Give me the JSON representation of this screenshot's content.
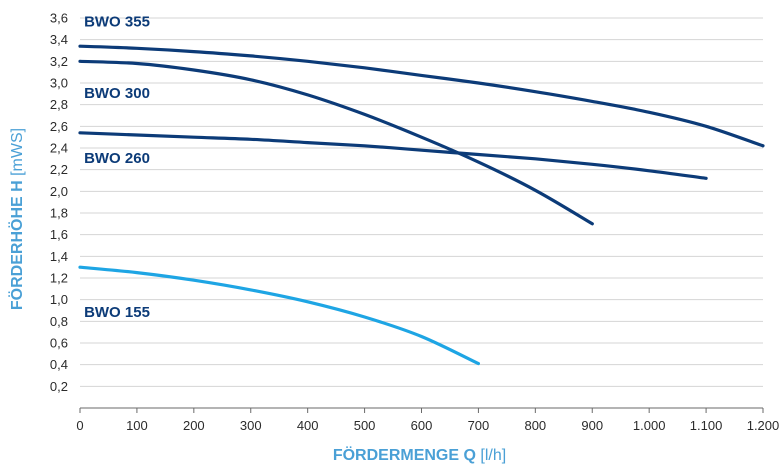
{
  "chart_data": {
    "type": "line",
    "xlabel_bold": "FÖRDERMENGE Q",
    "xlabel_unit": "[l/h]",
    "ylabel_bold": "FÖRDERHÖHE H",
    "ylabel_unit": "[mWS]",
    "xlim": [
      0,
      1200
    ],
    "ylim": [
      0,
      3.6
    ],
    "x_ticks": [
      0,
      100,
      200,
      300,
      400,
      500,
      600,
      700,
      800,
      900,
      1000,
      1100,
      1200
    ],
    "x_tick_labels": [
      "0",
      "100",
      "200",
      "300",
      "400",
      "500",
      "600",
      "700",
      "800",
      "900",
      "1.000",
      "1.100",
      "1.200"
    ],
    "y_ticks": [
      0.2,
      0.4,
      0.6,
      0.8,
      1.0,
      1.2,
      1.4,
      1.6,
      1.8,
      2.0,
      2.2,
      2.4,
      2.6,
      2.8,
      3.0,
      3.2,
      3.4,
      3.6
    ],
    "y_tick_labels": [
      "0,2",
      "0,4",
      "0,6",
      "0,8",
      "1,0",
      "1,2",
      "1,4",
      "1,6",
      "1,8",
      "2,0",
      "2,2",
      "2,4",
      "2,6",
      "2,8",
      "3,0",
      "3,2",
      "3,4",
      "3,6"
    ],
    "grid": "horizontal",
    "series": [
      {
        "name": "BWO 355",
        "color": "#0c3b78",
        "label_anchor": {
          "x": 30,
          "y": 3.52
        },
        "points": [
          [
            0,
            3.34
          ],
          [
            100,
            3.32
          ],
          [
            200,
            3.29
          ],
          [
            300,
            3.25
          ],
          [
            400,
            3.2
          ],
          [
            500,
            3.14
          ],
          [
            600,
            3.07
          ],
          [
            700,
            3.0
          ],
          [
            800,
            2.92
          ],
          [
            900,
            2.83
          ],
          [
            1000,
            2.73
          ],
          [
            1100,
            2.6
          ],
          [
            1200,
            2.42
          ]
        ]
      },
      {
        "name": "BWO 300",
        "color": "#0c3b78",
        "label_anchor": {
          "x": 30,
          "y": 2.86
        },
        "points": [
          [
            0,
            3.2
          ],
          [
            100,
            3.18
          ],
          [
            200,
            3.12
          ],
          [
            300,
            3.03
          ],
          [
            400,
            2.89
          ],
          [
            500,
            2.71
          ],
          [
            600,
            2.5
          ],
          [
            700,
            2.27
          ],
          [
            800,
            2.01
          ],
          [
            900,
            1.7
          ]
        ]
      },
      {
        "name": "BWO 260",
        "color": "#0c3b78",
        "label_anchor": {
          "x": 30,
          "y": 2.26
        },
        "points": [
          [
            0,
            2.54
          ],
          [
            100,
            2.52
          ],
          [
            200,
            2.5
          ],
          [
            300,
            2.48
          ],
          [
            400,
            2.45
          ],
          [
            500,
            2.42
          ],
          [
            600,
            2.38
          ],
          [
            700,
            2.34
          ],
          [
            800,
            2.3
          ],
          [
            900,
            2.25
          ],
          [
            1000,
            2.19
          ],
          [
            1100,
            2.12
          ]
        ]
      },
      {
        "name": "BWO 155",
        "color": "#1ea5e4",
        "label_anchor": {
          "x": 30,
          "y": 0.84
        },
        "points": [
          [
            0,
            1.3
          ],
          [
            100,
            1.25
          ],
          [
            200,
            1.18
          ],
          [
            300,
            1.09
          ],
          [
            400,
            0.98
          ],
          [
            500,
            0.84
          ],
          [
            600,
            0.66
          ],
          [
            700,
            0.41
          ]
        ]
      }
    ]
  }
}
